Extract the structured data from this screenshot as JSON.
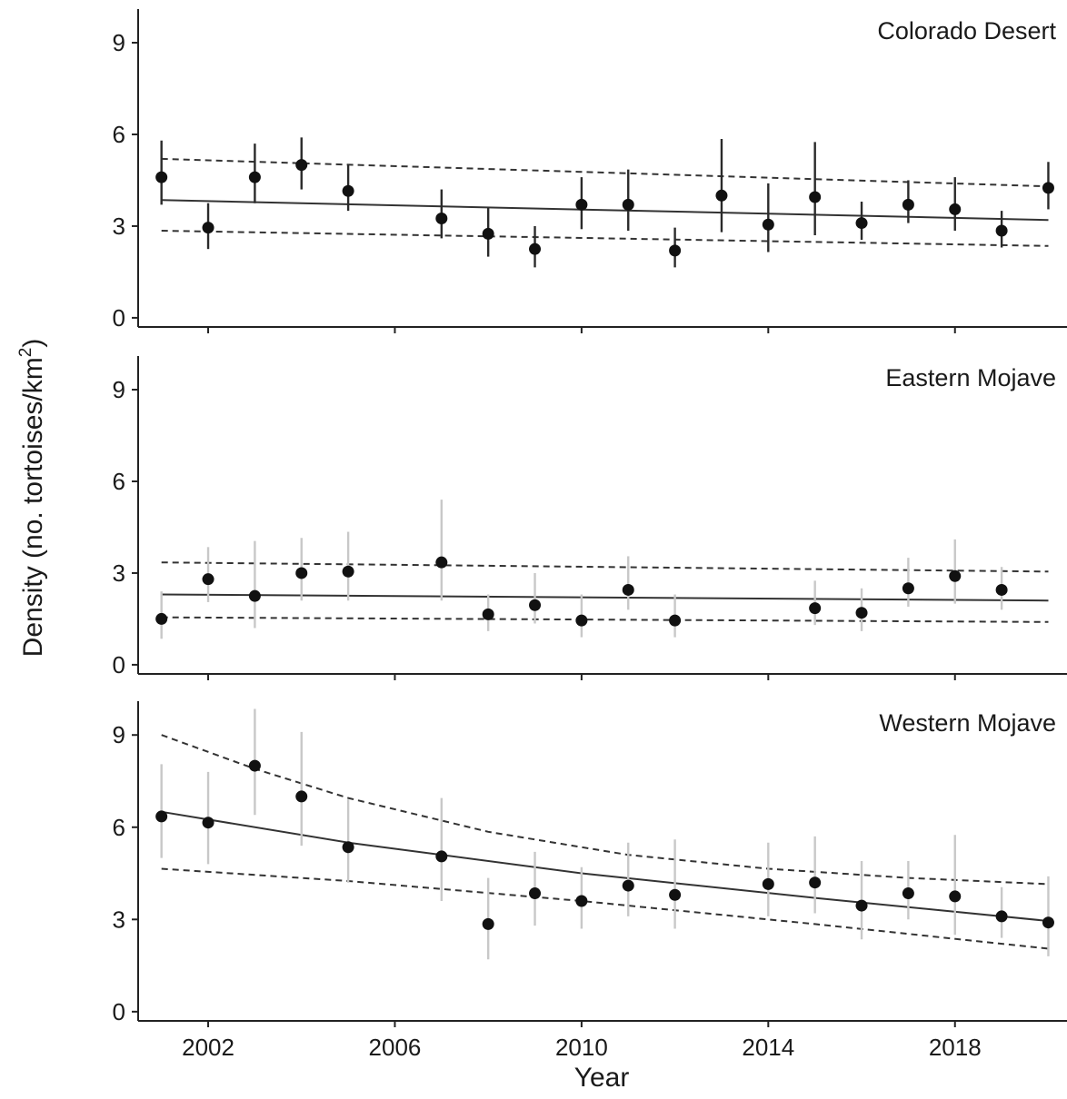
{
  "axes": {
    "xlabel": "Year",
    "ylabel_main": "Density (no. tortoises/km",
    "ylabel_sup": "2",
    "ylabel_close": ")",
    "xticks": [
      2002,
      2006,
      2010,
      2014,
      2018
    ],
    "xlim": [
      2000.5,
      2020.4
    ],
    "yticks": [
      0,
      3,
      6,
      9
    ],
    "ylim": [
      -0.3,
      10.1
    ]
  },
  "chart_data": [
    {
      "type": "scatter",
      "title": "Colorado Desert",
      "error_bar_color": "#2a2a2a",
      "x": [
        2001,
        2002,
        2003,
        2004,
        2005,
        2007,
        2008,
        2009,
        2010,
        2011,
        2012,
        2013,
        2014,
        2015,
        2016,
        2017,
        2018,
        2019,
        2020
      ],
      "y": [
        4.6,
        2.95,
        4.6,
        5.0,
        4.15,
        3.25,
        2.75,
        2.25,
        3.7,
        3.7,
        2.2,
        4.0,
        3.05,
        3.95,
        3.1,
        3.7,
        3.55,
        2.85,
        4.25
      ],
      "lower": [
        3.7,
        2.25,
        3.75,
        4.2,
        3.5,
        2.6,
        2.0,
        1.65,
        2.9,
        2.85,
        1.65,
        2.8,
        2.15,
        2.7,
        2.55,
        3.1,
        2.85,
        2.3,
        3.55
      ],
      "upper": [
        5.8,
        3.75,
        5.7,
        5.9,
        5.0,
        4.2,
        3.6,
        3.0,
        4.6,
        4.85,
        2.95,
        5.85,
        4.4,
        5.75,
        3.8,
        4.5,
        4.6,
        3.5,
        5.1
      ],
      "trend": {
        "x": [
          2001,
          2020
        ],
        "y": [
          3.85,
          3.2
        ]
      },
      "ci_lower": {
        "x": [
          2001,
          2020
        ],
        "y": [
          2.85,
          2.35
        ]
      },
      "ci_upper": {
        "x": [
          2001,
          2020
        ],
        "y": [
          5.2,
          4.3
        ]
      }
    },
    {
      "type": "scatter",
      "title": "Eastern Mojave",
      "error_bar_color": "#c8c8c8",
      "x": [
        2001,
        2002,
        2003,
        2004,
        2005,
        2007,
        2008,
        2009,
        2010,
        2011,
        2012,
        2015,
        2016,
        2017,
        2018,
        2019
      ],
      "y": [
        1.5,
        2.8,
        2.25,
        3.0,
        3.05,
        3.35,
        1.65,
        1.95,
        1.45,
        2.45,
        1.45,
        1.85,
        1.7,
        2.5,
        2.9,
        2.45
      ],
      "lower": [
        0.85,
        2.05,
        1.2,
        2.1,
        2.1,
        2.1,
        1.1,
        1.35,
        0.9,
        1.8,
        0.9,
        1.3,
        1.1,
        1.9,
        2.0,
        1.8
      ],
      "upper": [
        2.4,
        3.85,
        4.05,
        4.15,
        4.35,
        5.4,
        2.3,
        3.0,
        2.3,
        3.55,
        2.3,
        2.75,
        2.5,
        3.5,
        4.1,
        3.2
      ],
      "trend": {
        "x": [
          2001,
          2020
        ],
        "y": [
          2.3,
          2.1
        ]
      },
      "ci_lower": {
        "x": [
          2001,
          2020
        ],
        "y": [
          1.55,
          1.4
        ]
      },
      "ci_upper": {
        "x": [
          2001,
          2020
        ],
        "y": [
          3.35,
          3.05
        ]
      }
    },
    {
      "type": "scatter",
      "title": "Western Mojave",
      "error_bar_color": "#c8c8c8",
      "x": [
        2001,
        2002,
        2003,
        2004,
        2005,
        2007,
        2008,
        2009,
        2010,
        2011,
        2012,
        2014,
        2015,
        2016,
        2017,
        2018,
        2019,
        2020
      ],
      "y": [
        6.35,
        6.15,
        8.0,
        7.0,
        5.35,
        5.05,
        2.85,
        3.85,
        3.6,
        4.1,
        3.8,
        4.15,
        4.2,
        3.45,
        3.85,
        3.75,
        3.1,
        2.9
      ],
      "lower": [
        5.0,
        4.8,
        6.4,
        5.4,
        4.2,
        3.6,
        1.7,
        2.8,
        2.7,
        3.1,
        2.7,
        3.1,
        3.2,
        2.35,
        3.0,
        2.5,
        2.4,
        1.8
      ],
      "upper": [
        8.05,
        7.8,
        9.85,
        9.1,
        6.9,
        6.95,
        4.35,
        5.2,
        4.7,
        5.5,
        5.6,
        5.5,
        5.7,
        4.9,
        4.9,
        5.75,
        4.05,
        4.4
      ],
      "trend": {
        "x": [
          2001,
          2005,
          2010,
          2015,
          2020
        ],
        "y": [
          6.5,
          5.5,
          4.5,
          3.7,
          2.95
        ]
      },
      "ci_lower": {
        "x": [
          2001,
          2005,
          2010,
          2015,
          2020
        ],
        "y": [
          4.65,
          4.25,
          3.6,
          2.85,
          2.05
        ]
      },
      "ci_upper": {
        "x": [
          2001,
          2003,
          2005,
          2008,
          2011,
          2014,
          2017,
          2020
        ],
        "y": [
          9.0,
          7.9,
          6.95,
          5.85,
          5.1,
          4.65,
          4.35,
          4.15
        ]
      }
    }
  ]
}
